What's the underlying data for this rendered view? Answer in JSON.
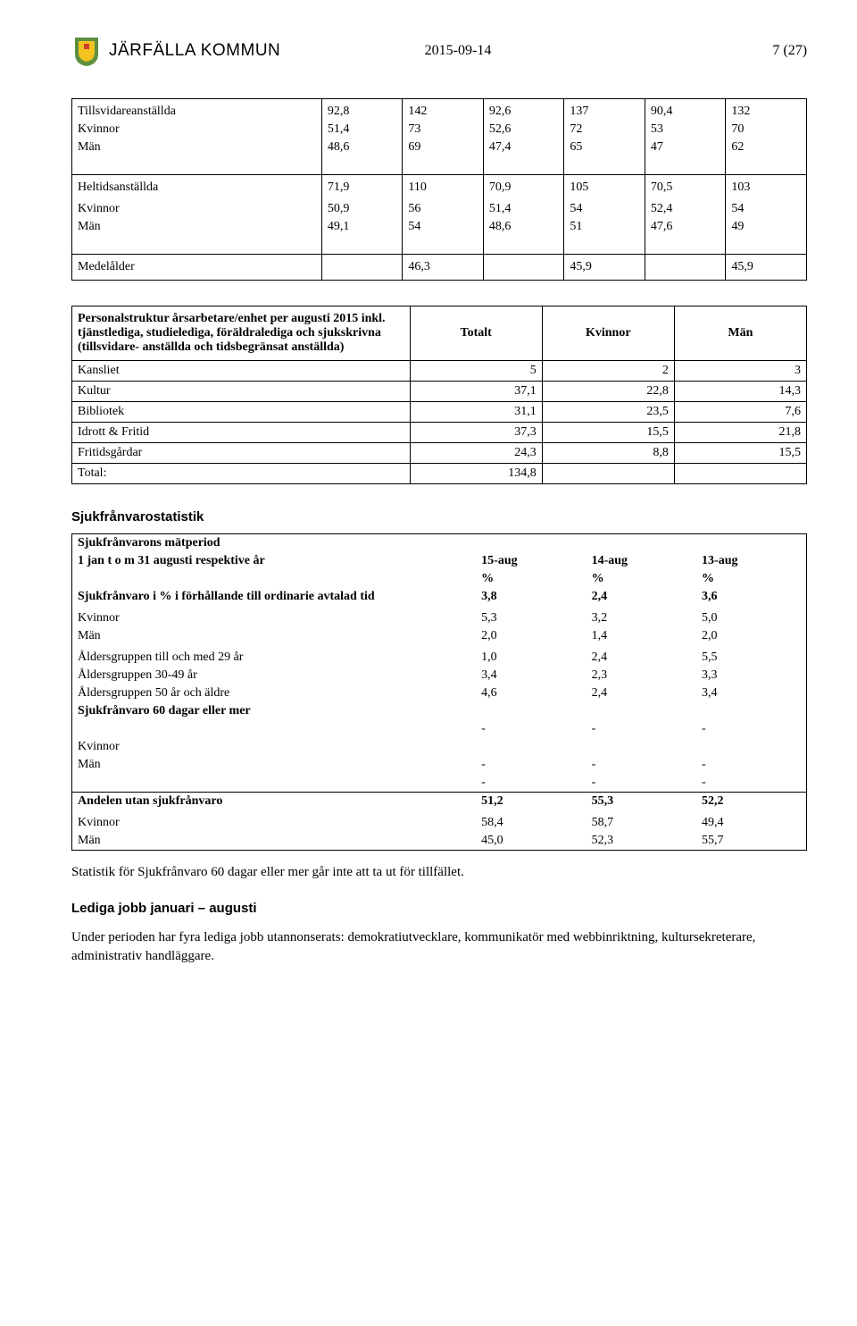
{
  "header": {
    "org": "JÄRFÄLLA KOMMUN",
    "date": "2015-09-14",
    "page": "7 (27)"
  },
  "logo": {
    "bg": "#5e8f3f",
    "shield": "#f2c21e",
    "accent": "#d23b2e"
  },
  "table1": {
    "rows": [
      {
        "label": "Tillsvidareanställda",
        "bold": true,
        "v": [
          "92,8",
          "142",
          "92,6",
          "137",
          "90,4",
          "132"
        ]
      },
      {
        "label": "Kvinnor",
        "v": [
          "51,4",
          "73",
          "52,6",
          "72",
          "53",
          "70"
        ]
      },
      {
        "label": "Män",
        "v": [
          "48,6",
          "69",
          "47,4",
          "65",
          "47",
          "62"
        ]
      },
      {
        "label": "Heltidsanställda",
        "bold": true,
        "hr": true,
        "v": [
          "71,9",
          "110",
          "70,9",
          "105",
          "70,5",
          "103"
        ]
      },
      {
        "label": "Kvinnor",
        "v": [
          "50,9",
          "56",
          "51,4",
          "54",
          "52,4",
          "54"
        ]
      },
      {
        "label": "Män",
        "v": [
          "49,1",
          "54",
          "48,6",
          "51",
          "47,6",
          "49"
        ]
      },
      {
        "label": "Medelålder",
        "bold": true,
        "hr": true,
        "v": [
          "",
          "46,3",
          "",
          "45,9",
          "",
          "45,9"
        ]
      }
    ]
  },
  "table2": {
    "head_label": "Personalstruktur årsarbetare/enhet per augusti 2015 inkl. tjänstlediga, studielediga, föräldralediga och sjukskrivna (tillsvidare- anställda och tidsbegränsat anställda)",
    "cols": [
      "Totalt",
      "Kvinnor",
      "Män"
    ],
    "rows": [
      {
        "label": "Kansliet",
        "v": [
          "5",
          "2",
          "3"
        ]
      },
      {
        "label": "Kultur",
        "v": [
          "37,1",
          "22,8",
          "14,3"
        ]
      },
      {
        "label": "Bibliotek",
        "v": [
          "31,1",
          "23,5",
          "7,6"
        ]
      },
      {
        "label": "Idrott & Fritid",
        "v": [
          "37,3",
          "15,5",
          "21,8"
        ]
      },
      {
        "label": "Fritidsgårdar",
        "v": [
          "24,3",
          "8,8",
          "15,5"
        ]
      },
      {
        "label": "Total:",
        "v": [
          "134,8",
          "",
          ""
        ]
      }
    ]
  },
  "sjuk_title": "Sjukfrånvarostatistik",
  "table3": {
    "period_label": "Sjukfrånvarons mätperiod",
    "period_sub": "1 jan t o m 31 augusti respektive år",
    "cols": [
      "15-aug",
      "14-aug",
      "13-aug"
    ],
    "unit": "%",
    "rows": [
      {
        "label": "Sjukfrånvaro i % i förhållande till ordinarie avtalad tid",
        "bold": true,
        "v": [
          "3,8",
          "2,4",
          "3,6"
        ]
      },
      {
        "label": "",
        "v": [
          "",
          "",
          ""
        ]
      },
      {
        "label": "Kvinnor",
        "v": [
          "5,3",
          "3,2",
          "5,0"
        ]
      },
      {
        "label": "Män",
        "v": [
          "2,0",
          "1,4",
          "2,0"
        ]
      },
      {
        "label": "",
        "v": [
          "",
          "",
          ""
        ]
      },
      {
        "label": "Åldersgruppen till och med 29 år",
        "v": [
          "1,0",
          "2,4",
          "5,5"
        ]
      },
      {
        "label": "Åldersgruppen 30-49 år",
        "v": [
          "3,4",
          "2,3",
          "3,3"
        ]
      },
      {
        "label": "Åldersgruppen 50 år och äldre",
        "v": [
          "4,6",
          "2,4",
          "3,4"
        ]
      },
      {
        "label": "Sjukfrånvaro 60 dagar eller mer",
        "bold": true,
        "v": [
          "",
          "",
          ""
        ]
      },
      {
        "label": "",
        "v": [
          "-",
          "-",
          "-"
        ]
      },
      {
        "label": "Kvinnor",
        "v": [
          "",
          "",
          ""
        ]
      },
      {
        "label": "Män",
        "v": [
          "-",
          "-",
          "-"
        ]
      },
      {
        "label": "",
        "v": [
          "-",
          "-",
          "-"
        ]
      }
    ],
    "block2": [
      {
        "label": "Andelen utan sjukfrånvaro",
        "bold": true,
        "v": [
          "51,2",
          "55,3",
          "52,2"
        ]
      },
      {
        "label": "",
        "v": [
          "",
          "",
          ""
        ]
      },
      {
        "label": "Kvinnor",
        "v": [
          "58,4",
          "58,7",
          "49,4"
        ]
      },
      {
        "label": "Män",
        "v": [
          "45,0",
          "52,3",
          "55,7"
        ]
      }
    ]
  },
  "note_after_t3": "Statistik för Sjukfrånvaro 60 dagar eller mer går inte att ta ut för tillfället.",
  "lediga_title": "Lediga jobb januari – augusti",
  "lediga_text": "Under perioden har fyra lediga jobb utannonserats: demokratiutvecklare, kommunikatör med webbinriktning, kultursekreterare, administrativ handläggare."
}
